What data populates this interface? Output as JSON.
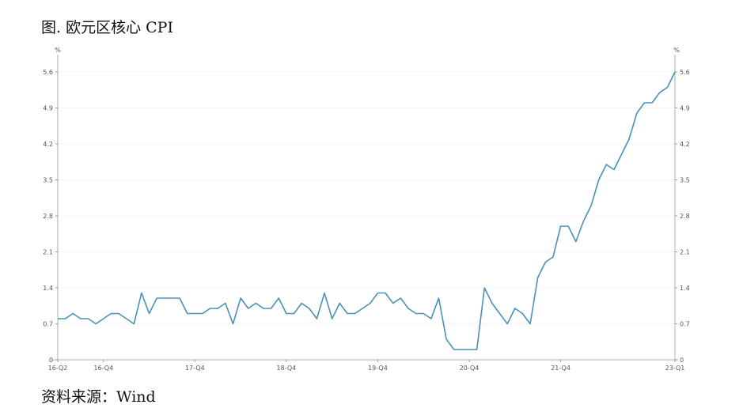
{
  "figure": {
    "title": "图. 欧元区核心 CPI",
    "source": "资料来源：Wind"
  },
  "chart_data": {
    "type": "line",
    "unit_left": "%",
    "unit_right": "%",
    "ylim": [
      0,
      5.6
    ],
    "yticks": [
      0,
      0.7,
      1.4,
      2.1,
      2.8,
      3.5,
      4.2,
      4.9,
      5.6
    ],
    "ytick_labels": [
      "0",
      "0.7",
      "1.4",
      "2.1",
      "2.8",
      "3.5",
      "4.2",
      "4.9",
      "5.6"
    ],
    "grid": true,
    "line_color": "#4a90b8",
    "xtick_labels": [
      {
        "label": "16-Q2",
        "index": 0
      },
      {
        "label": "16-Q4",
        "index": 6
      },
      {
        "label": "17-Q4",
        "index": 18
      },
      {
        "label": "18-Q4",
        "index": 30
      },
      {
        "label": "19-Q4",
        "index": 42
      },
      {
        "label": "20-Q4",
        "index": 54
      },
      {
        "label": "21-Q4",
        "index": 66
      },
      {
        "label": "23-Q1",
        "index": 81
      }
    ],
    "series": [
      {
        "values": [
          0.8,
          0.8,
          0.9,
          0.8,
          0.8,
          0.7,
          0.8,
          0.9,
          0.9,
          0.8,
          0.7,
          1.3,
          0.9,
          1.2,
          1.2,
          1.2,
          1.2,
          0.9,
          0.9,
          0.9,
          1.0,
          1.0,
          1.1,
          0.7,
          1.2,
          1.0,
          1.1,
          1.0,
          1.0,
          1.2,
          0.9,
          0.9,
          1.1,
          1.0,
          0.8,
          1.3,
          0.8,
          1.1,
          0.9,
          0.9,
          1.0,
          1.1,
          1.3,
          1.3,
          1.1,
          1.2,
          1.0,
          0.9,
          0.9,
          0.8,
          1.2,
          0.4,
          0.2,
          0.2,
          0.2,
          0.2,
          1.4,
          1.1,
          0.9,
          0.7,
          1.0,
          0.9,
          0.7,
          1.6,
          1.9,
          2.0,
          2.6,
          2.6,
          2.3,
          2.7,
          3.0,
          3.5,
          3.8,
          3.7,
          4.0,
          4.3,
          4.8,
          5.0,
          5.0,
          5.2,
          5.3,
          5.6
        ]
      }
    ]
  }
}
